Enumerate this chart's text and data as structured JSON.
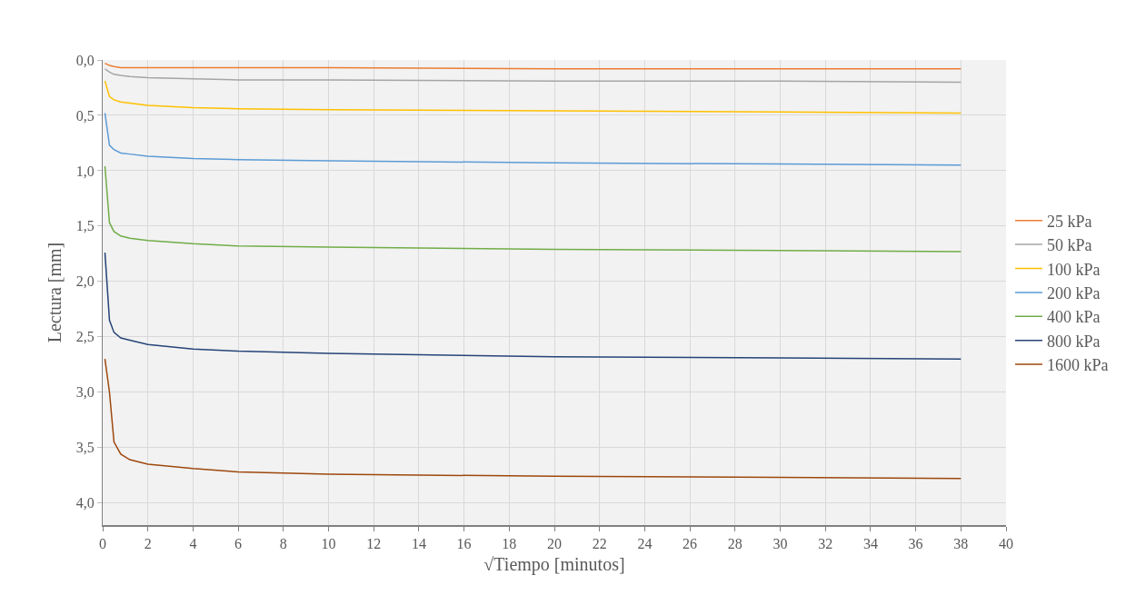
{
  "chart_data": {
    "type": "line",
    "xlabel": "√Tiempo [minutos]",
    "ylabel": "Lectura [mm]",
    "x": [
      0.1,
      0.3,
      0.5,
      0.8,
      1.2,
      2,
      4,
      6,
      10,
      20,
      30,
      38
    ],
    "series": [
      {
        "name": "25 kPa",
        "color": "#ed7d31",
        "values": [
          0.03,
          0.05,
          0.06,
          0.07,
          0.07,
          0.07,
          0.07,
          0.07,
          0.07,
          0.08,
          0.08,
          0.08
        ]
      },
      {
        "name": "50 kPa",
        "color": "#a5a5a5",
        "values": [
          0.08,
          0.11,
          0.13,
          0.14,
          0.15,
          0.16,
          0.17,
          0.18,
          0.18,
          0.19,
          0.19,
          0.2
        ]
      },
      {
        "name": "100 kPa",
        "color": "#ffc000",
        "values": [
          0.19,
          0.33,
          0.36,
          0.38,
          0.39,
          0.41,
          0.43,
          0.44,
          0.45,
          0.46,
          0.47,
          0.48
        ]
      },
      {
        "name": "200 kPa",
        "color": "#5b9bd5",
        "values": [
          0.48,
          0.77,
          0.81,
          0.84,
          0.85,
          0.87,
          0.89,
          0.9,
          0.91,
          0.93,
          0.94,
          0.95
        ]
      },
      {
        "name": "400 kPa",
        "color": "#70ad47",
        "values": [
          0.96,
          1.47,
          1.55,
          1.59,
          1.61,
          1.63,
          1.66,
          1.68,
          1.69,
          1.71,
          1.72,
          1.73
        ]
      },
      {
        "name": "800 kPa",
        "color": "#264478",
        "values": [
          1.74,
          2.35,
          2.46,
          2.51,
          2.53,
          2.57,
          2.61,
          2.63,
          2.65,
          2.68,
          2.69,
          2.7
        ]
      },
      {
        "name": "1600 kPa",
        "color": "#9e480e",
        "values": [
          2.7,
          3.0,
          3.45,
          3.56,
          3.61,
          3.65,
          3.69,
          3.72,
          3.74,
          3.76,
          3.77,
          3.78
        ]
      }
    ],
    "xlim": [
      0,
      40
    ],
    "xticks": [
      0,
      2,
      4,
      6,
      8,
      10,
      12,
      14,
      16,
      18,
      20,
      22,
      24,
      26,
      28,
      30,
      32,
      34,
      36,
      38,
      40
    ],
    "ylim": [
      4.2,
      0
    ],
    "yticks": [
      {
        "value": 0,
        "label": "0,0"
      },
      {
        "value": 0.5,
        "label": "0,5"
      },
      {
        "value": 1,
        "label": "1,0"
      },
      {
        "value": 1.5,
        "label": "1,5"
      },
      {
        "value": 2,
        "label": "2,0"
      },
      {
        "value": 2.5,
        "label": "2,5"
      },
      {
        "value": 3,
        "label": "3,0"
      },
      {
        "value": 3.5,
        "label": "3,5"
      },
      {
        "value": 4,
        "label": "4,0"
      }
    ],
    "grid": true,
    "legend": "right",
    "marker": "none",
    "line_style": "solid"
  }
}
